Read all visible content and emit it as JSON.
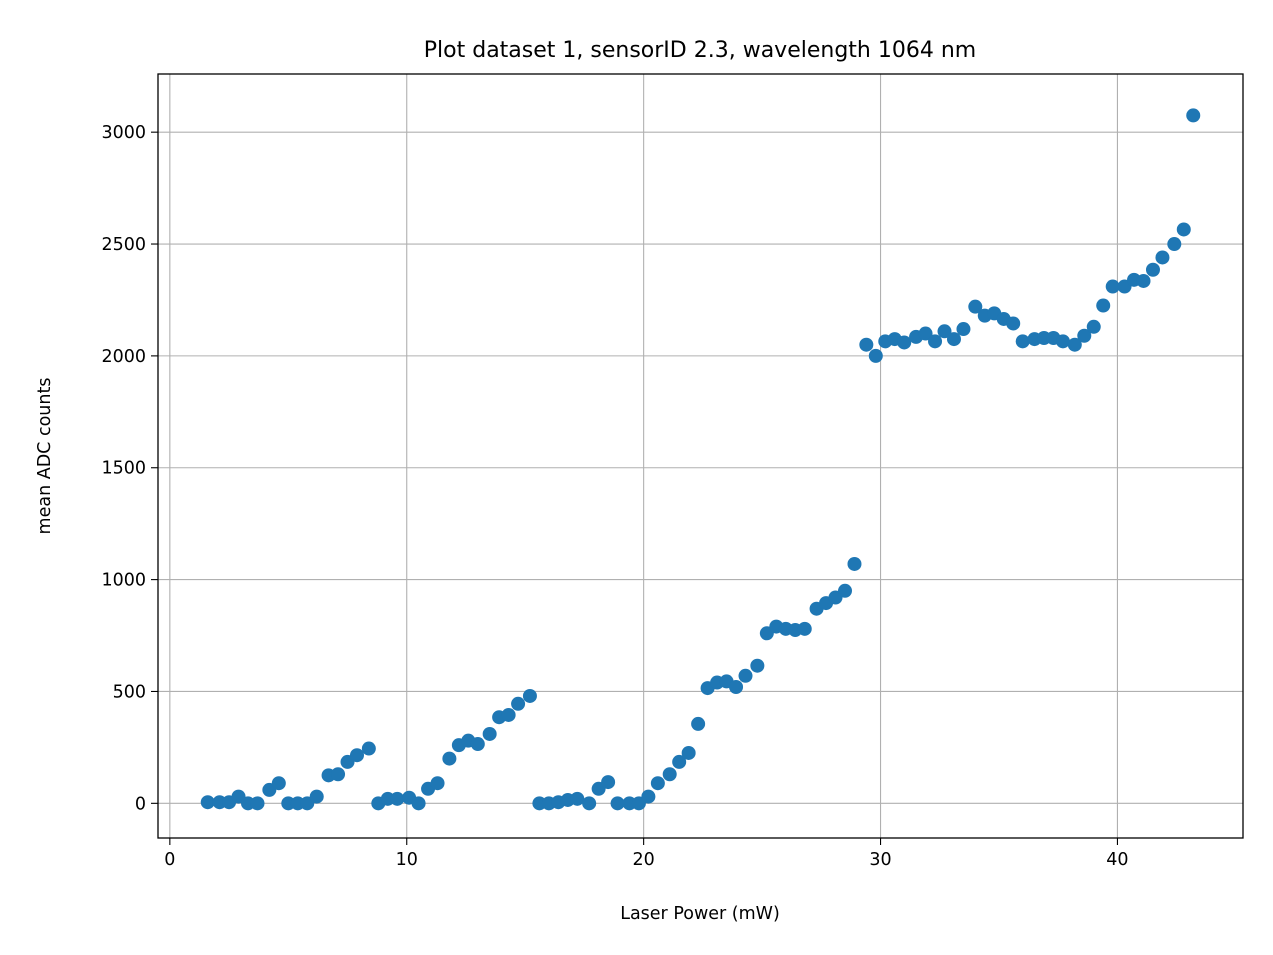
{
  "chart_data": {
    "type": "scatter",
    "title": "Plot dataset 1, sensorID 2.3, wavelength 1064 nm",
    "xlabel": "Laser Power (mW)",
    "ylabel": "mean ADC counts",
    "xlim": [
      -0.5,
      45.3
    ],
    "ylim": [
      -155,
      3260
    ],
    "xticks": [
      0,
      10,
      20,
      30,
      40
    ],
    "yticks": [
      0,
      500,
      1000,
      1500,
      2000,
      2500,
      3000
    ],
    "grid": true,
    "legend": "none",
    "marker_color": "#1f77b4",
    "series": [
      {
        "x": [
          1.6,
          2.1,
          2.5,
          2.9,
          3.3,
          3.7,
          4.2,
          4.6,
          5.0,
          5.4,
          5.8,
          6.2,
          6.7,
          7.1,
          7.5,
          7.9,
          8.4,
          8.8,
          9.2,
          9.6,
          10.1,
          10.5,
          10.9,
          11.3,
          11.8,
          12.2,
          12.6,
          13.0,
          13.5,
          13.9,
          14.3,
          14.7,
          15.2,
          15.6,
          16.0,
          16.4,
          16.8,
          17.2,
          17.7,
          18.1,
          18.5,
          18.9,
          19.4,
          19.8,
          20.2,
          20.6,
          21.1,
          21.5,
          21.9,
          22.3,
          22.7,
          23.1,
          23.5,
          23.9,
          24.3,
          24.8,
          25.2,
          25.6,
          26.0,
          26.4,
          26.8,
          27.3,
          27.7,
          28.1,
          28.5,
          28.9,
          29.4,
          29.8,
          30.2,
          30.6,
          31.0,
          31.5,
          31.9,
          32.3,
          32.7,
          33.1,
          33.5,
          34.0,
          34.4,
          34.8,
          35.2,
          35.6,
          36.0,
          36.5,
          36.9,
          37.3,
          37.7,
          38.2,
          38.6,
          39.0,
          39.4,
          39.8,
          40.3,
          40.7,
          41.1,
          41.5,
          41.9,
          42.4,
          42.8,
          43.2
        ],
        "y": [
          5,
          5,
          5,
          30,
          0,
          0,
          60,
          90,
          0,
          0,
          0,
          30,
          125,
          130,
          185,
          215,
          245,
          0,
          20,
          20,
          25,
          0,
          65,
          90,
          200,
          260,
          280,
          265,
          310,
          385,
          395,
          445,
          480,
          0,
          0,
          5,
          15,
          20,
          0,
          65,
          95,
          0,
          0,
          0,
          30,
          90,
          130,
          185,
          225,
          355,
          515,
          540,
          545,
          520,
          570,
          615,
          760,
          790,
          780,
          775,
          780,
          870,
          895,
          920,
          950,
          1070,
          2050,
          2000,
          2065,
          2075,
          2060,
          2085,
          2100,
          2065,
          2110,
          2075,
          2120,
          2220,
          2180,
          2190,
          2165,
          2145,
          2065,
          2075,
          2080,
          2080,
          2065,
          2050,
          2090,
          2130,
          2225,
          2310,
          2310,
          2340,
          2335,
          2385,
          2440,
          2500,
          2565,
          3075
        ]
      }
    ]
  }
}
